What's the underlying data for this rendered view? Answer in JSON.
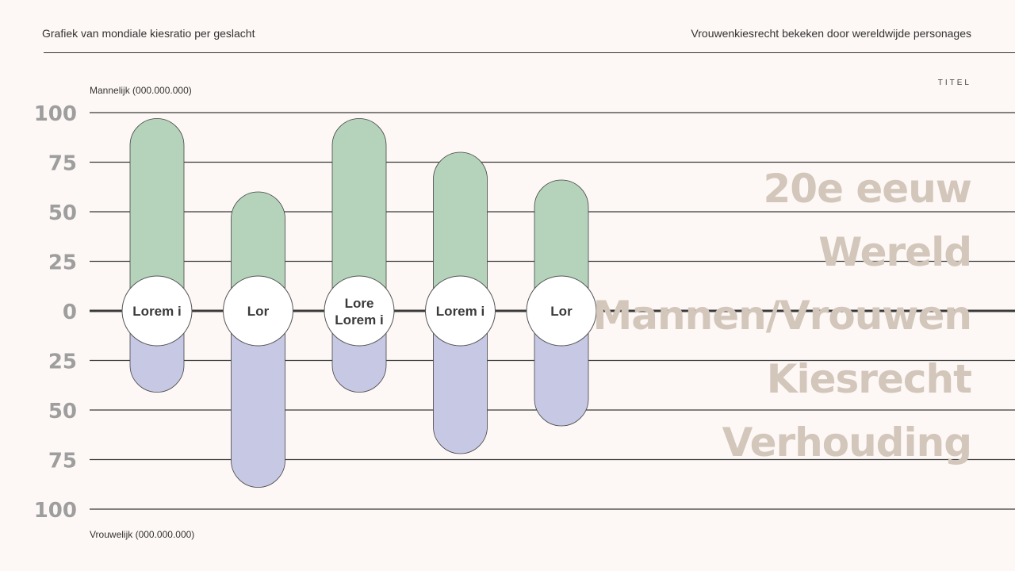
{
  "header": {
    "left": "Grafiek van mondiale kiesratio per geslacht",
    "right": "Vrouwenkiesrecht bekeken door wereldwijde personages"
  },
  "title_label": "TITEL",
  "big_titles": [
    "20e eeuw",
    "Wereld",
    "Mannen/Vrouwen",
    "Kiesrecht",
    "Verhouding"
  ],
  "colors": {
    "background": "#fdf8f5",
    "men": "#b5d3bb",
    "women": "#c7c8e4",
    "title": "#d3c6bb",
    "grid": "#3a3a3a"
  },
  "chart_data": {
    "type": "bar",
    "ylabel_top": "Mannelijk (000.000.000)",
    "ylabel_bottom": "Vrouwelijk (000.000.000)",
    "y_ticks": [
      "100",
      "75",
      "50",
      "25",
      "0",
      "25",
      "50",
      "75",
      "100"
    ],
    "ylim": [
      -100,
      100
    ],
    "categories": [
      "Lorem i",
      "Lor",
      "Lore Lorem i",
      "Lorem i",
      "Lor"
    ],
    "series": [
      {
        "name": "Mannelijk",
        "values": [
          97,
          60,
          97,
          80,
          66
        ]
      },
      {
        "name": "Vrouwelijk",
        "values": [
          41,
          89,
          41,
          72,
          58
        ]
      }
    ]
  }
}
